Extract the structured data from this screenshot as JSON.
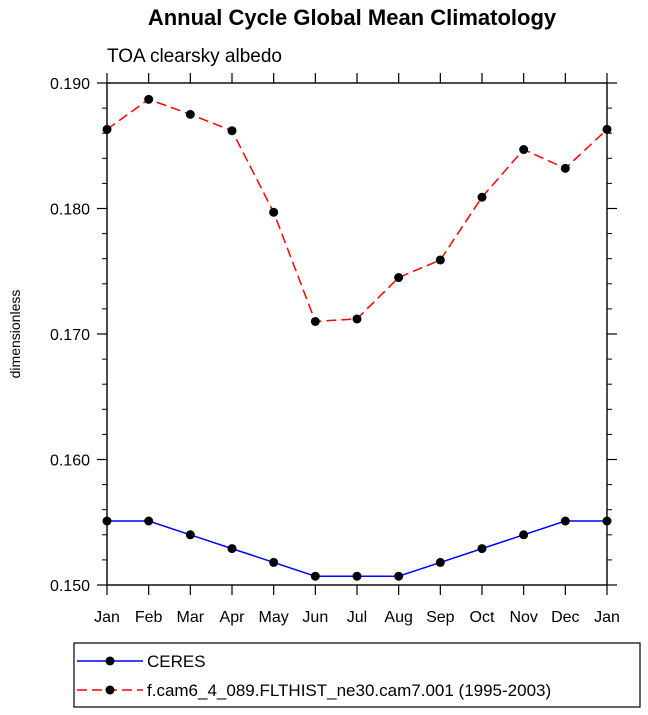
{
  "chart_data": {
    "type": "line",
    "title": "Annual Cycle Global Mean Climatology",
    "subtitle": "TOA clearsky albedo",
    "xlabel": "",
    "ylabel": "dimensionless",
    "categories": [
      "Jan",
      "Feb",
      "Mar",
      "Apr",
      "May",
      "Jun",
      "Jul",
      "Aug",
      "Sep",
      "Oct",
      "Nov",
      "Dec",
      "Jan"
    ],
    "ylim": [
      0.15,
      0.19
    ],
    "yticks": [
      0.15,
      0.16,
      0.17,
      0.18,
      0.19
    ],
    "ytick_labels": [
      "0.150",
      "0.160",
      "0.170",
      "0.180",
      "0.190"
    ],
    "series": [
      {
        "name": "CERES",
        "color": "#0000ff",
        "line_style": "solid",
        "values": [
          0.1551,
          0.1551,
          0.154,
          0.1529,
          0.1518,
          0.1507,
          0.1507,
          0.1507,
          0.1518,
          0.1529,
          0.154,
          0.1551,
          0.1551
        ]
      },
      {
        "name": "f.cam6_4_089.FLTHIST_ne30.cam7.001 (1995-2003)",
        "color": "#ff0000",
        "line_style": "dashed",
        "values": [
          0.1863,
          0.1887,
          0.1875,
          0.1862,
          0.1797,
          0.171,
          0.1712,
          0.1745,
          0.1759,
          0.1809,
          0.1847,
          0.1832,
          0.1863
        ]
      }
    ],
    "legend_position": "bottom"
  }
}
